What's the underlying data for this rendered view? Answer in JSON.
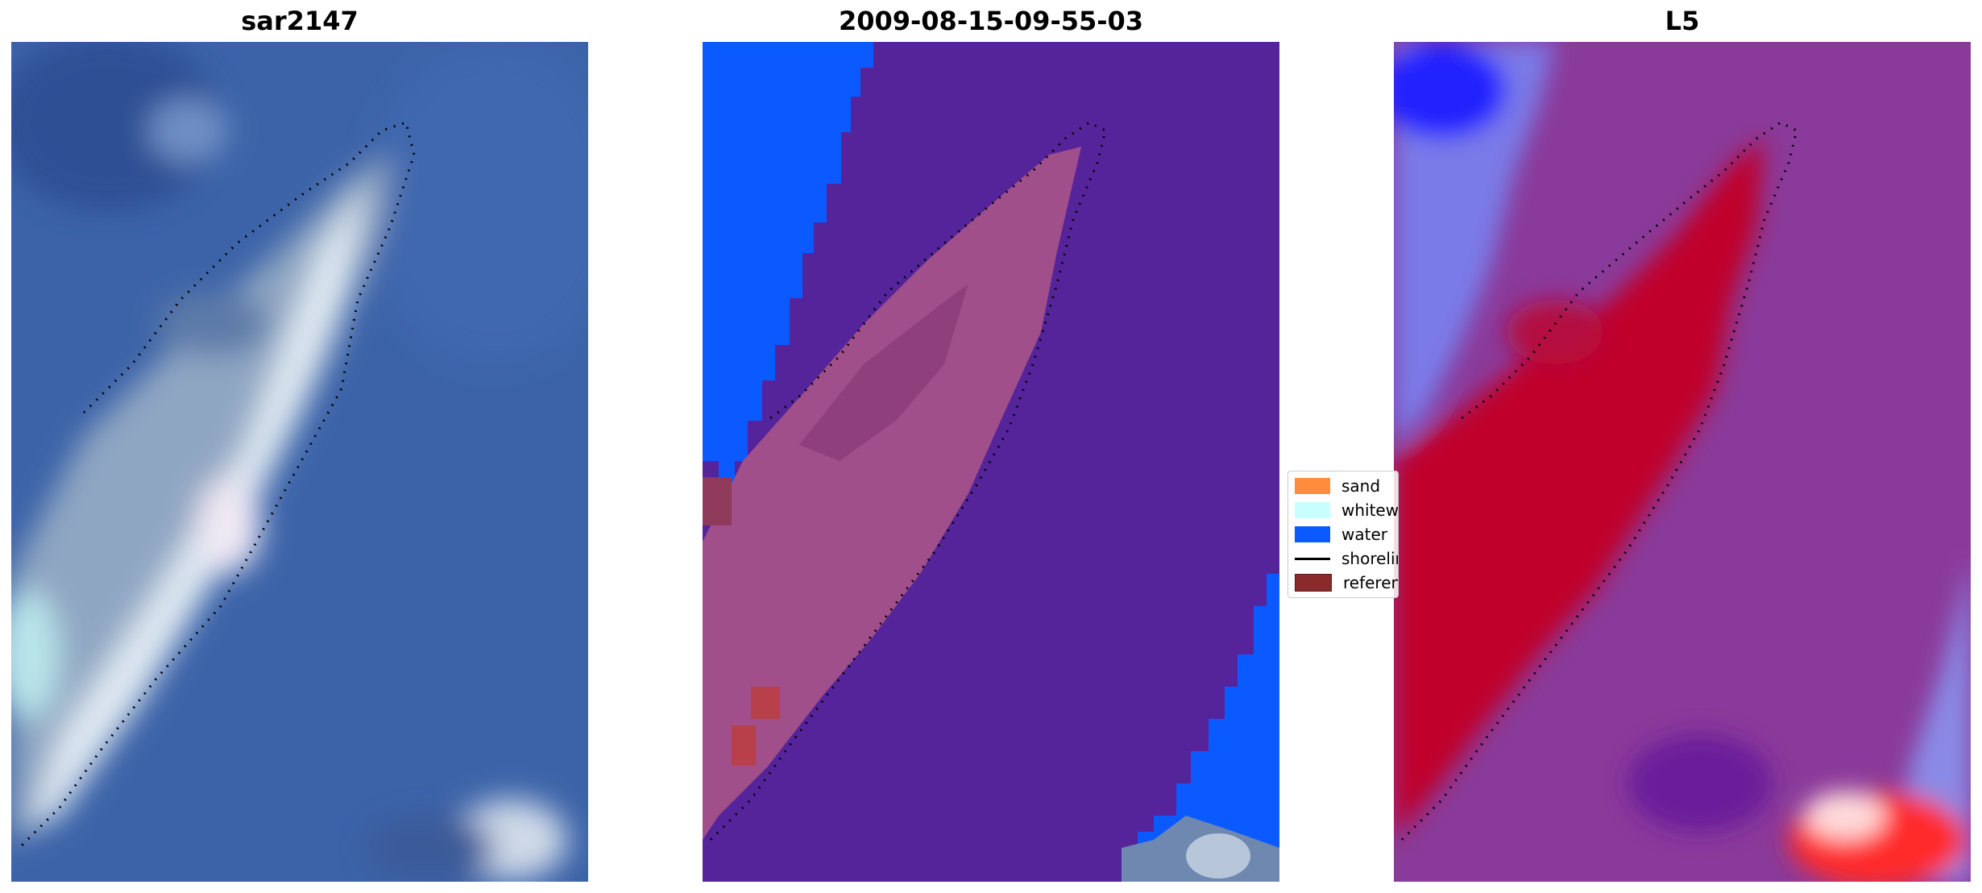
{
  "panels": [
    {
      "title": "sar2147"
    },
    {
      "title": "2009-08-15-09-55-03"
    },
    {
      "title": "L5"
    }
  ],
  "legend": {
    "items": [
      {
        "label": "sand",
        "color": "#ff8c3c",
        "kind": "patch"
      },
      {
        "label": "whitewater",
        "color": "#c8ffff",
        "kind": "patch"
      },
      {
        "label": "water",
        "color": "#0a5aff",
        "kind": "patch"
      },
      {
        "label": "shoreline",
        "color": "#000000",
        "kind": "line"
      },
      {
        "label": "reference",
        "color": "#8a2a2a",
        "kind": "patch"
      }
    ]
  },
  "colors": {
    "rgb_background": "#3c63a8",
    "classified_water": "#0a5aff",
    "classified_other": "#55249a",
    "classified_sandbar": "#a04f8a",
    "index_red": "#c0002c",
    "index_purple": "#8a3a9a",
    "index_blue": "#2020ff"
  }
}
